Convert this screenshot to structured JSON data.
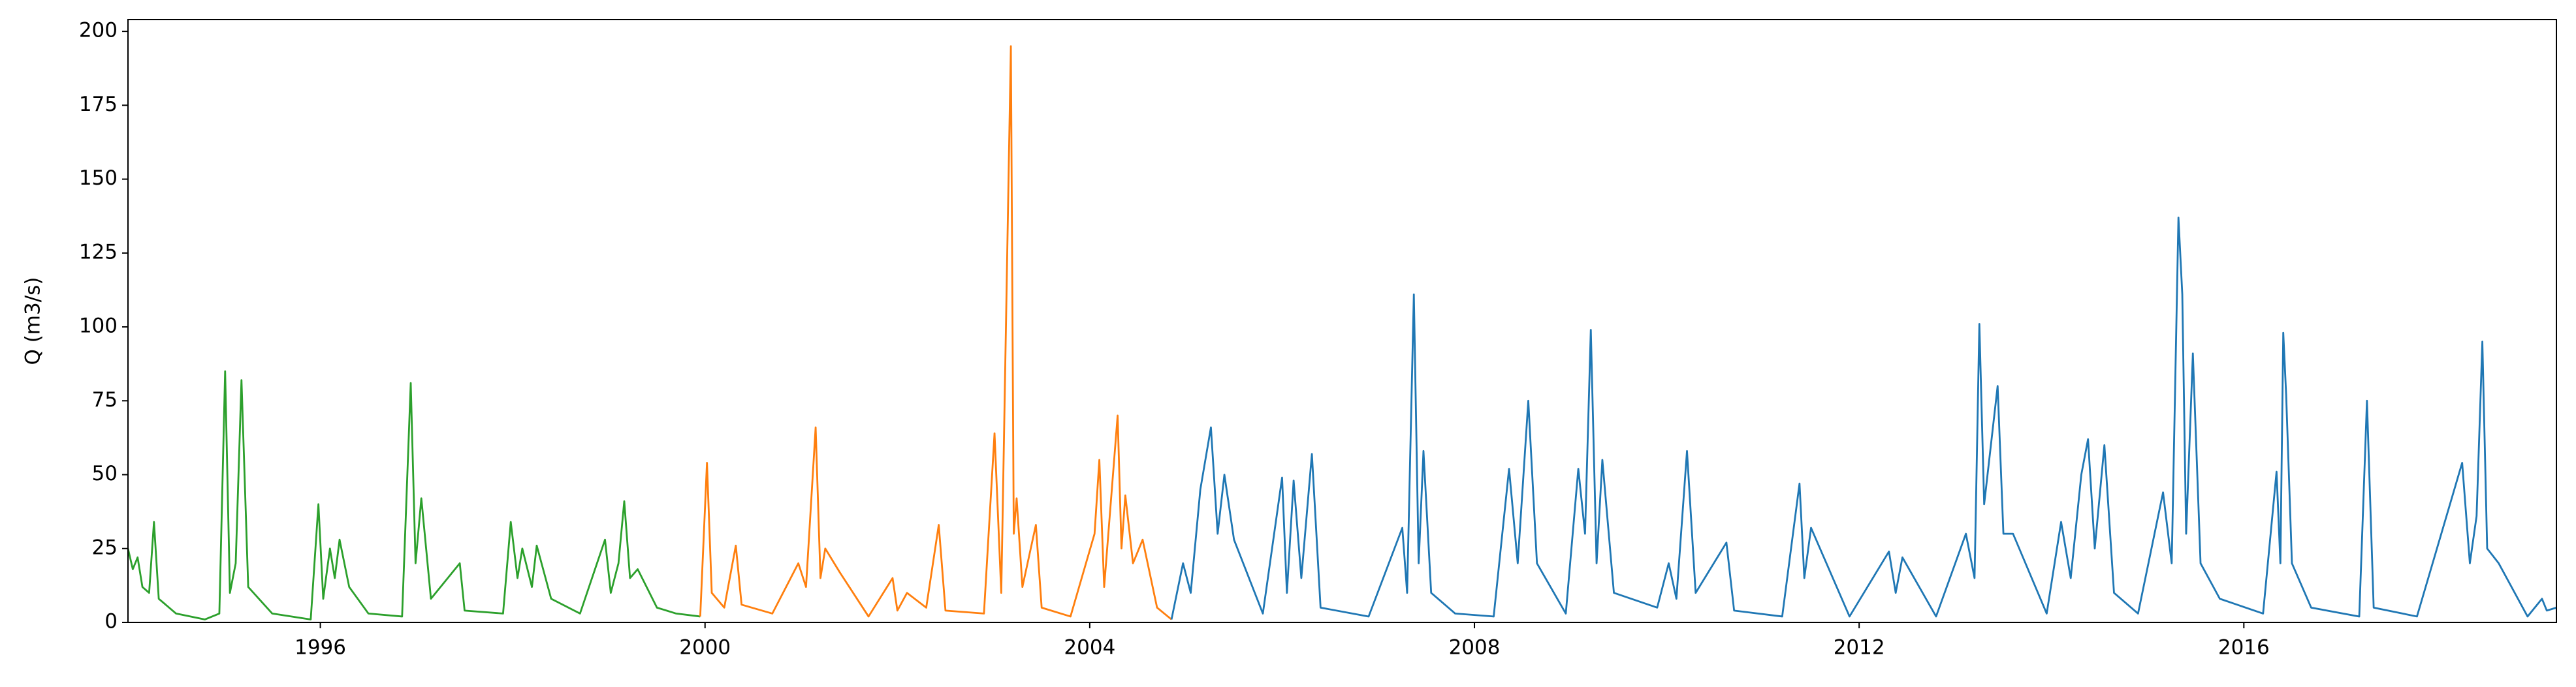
{
  "chart_data": {
    "type": "line",
    "y_label": "Q (m3/s)",
    "xlim": [
      1994.0,
      2019.25
    ],
    "xticks": [
      1996,
      2000,
      2004,
      2008,
      2012,
      2016
    ],
    "ylim": [
      0,
      204
    ],
    "yticks": [
      0,
      25,
      50,
      75,
      100,
      125,
      150,
      175,
      200
    ],
    "grid": false,
    "series": [
      {
        "color": "#2ca02c",
        "x": [
          1994.0,
          1994.05,
          1994.1,
          1994.15,
          1994.22,
          1994.27,
          1994.32,
          1994.5,
          1994.8,
          1994.95,
          1995.01,
          1995.06,
          1995.12,
          1995.18,
          1995.25,
          1995.5,
          1995.9,
          1995.98,
          1996.03,
          1996.1,
          1996.15,
          1996.2,
          1996.25,
          1996.3,
          1996.5,
          1996.85,
          1996.94,
          1996.99,
          1997.05,
          1997.15,
          1997.45,
          1997.5,
          1997.9,
          1997.98,
          1998.05,
          1998.1,
          1998.2,
          1998.25,
          1998.4,
          1998.7,
          1998.96,
          1999.02,
          1999.1,
          1999.16,
          1999.22,
          1999.3,
          1999.5,
          1999.7,
          1999.95
        ],
        "values": [
          25,
          18,
          22,
          12,
          10,
          34,
          8,
          3,
          1,
          3,
          85,
          10,
          20,
          82,
          12,
          3,
          1,
          40,
          8,
          25,
          15,
          28,
          20,
          12,
          3,
          2,
          81,
          20,
          42,
          8,
          20,
          4,
          3,
          34,
          15,
          25,
          12,
          26,
          8,
          3,
          28,
          10,
          20,
          41,
          15,
          18,
          5,
          3,
          2
        ]
      },
      {
        "color": "#ff7f0e",
        "x": [
          1999.95,
          2000.02,
          2000.07,
          2000.2,
          2000.32,
          2000.38,
          2000.7,
          2000.97,
          2001.05,
          2001.15,
          2001.2,
          2001.25,
          2001.4,
          2001.7,
          2001.95,
          2002.0,
          2002.1,
          2002.3,
          2002.43,
          2002.5,
          2002.9,
          2003.01,
          2003.08,
          2003.18,
          2003.21,
          2003.24,
          2003.3,
          2003.44,
          2003.5,
          2003.8,
          2004.05,
          2004.1,
          2004.15,
          2004.29,
          2004.33,
          2004.37,
          2004.45,
          2004.55,
          2004.7,
          2004.85
        ],
        "values": [
          2,
          54,
          10,
          5,
          26,
          6,
          3,
          20,
          12,
          66,
          15,
          25,
          17,
          2,
          15,
          4,
          10,
          5,
          33,
          4,
          3,
          64,
          10,
          195,
          30,
          42,
          12,
          33,
          5,
          2,
          30,
          55,
          12,
          70,
          25,
          43,
          20,
          28,
          5,
          1
        ]
      },
      {
        "color": "#1f77b4",
        "x": [
          2004.85,
          2004.97,
          2005.05,
          2005.15,
          2005.26,
          2005.33,
          2005.4,
          2005.5,
          2005.8,
          2006.0,
          2006.05,
          2006.12,
          2006.2,
          2006.31,
          2006.4,
          2006.9,
          2007.25,
          2007.3,
          2007.37,
          2007.42,
          2007.47,
          2007.55,
          2007.8,
          2008.2,
          2008.36,
          2008.45,
          2008.56,
          2008.65,
          2008.95,
          2009.08,
          2009.15,
          2009.21,
          2009.27,
          2009.33,
          2009.45,
          2009.9,
          2010.02,
          2010.1,
          2010.21,
          2010.3,
          2010.62,
          2010.7,
          2011.2,
          2011.38,
          2011.43,
          2011.5,
          2011.9,
          2012.31,
          2012.38,
          2012.45,
          2012.8,
          2013.11,
          2013.2,
          2013.25,
          2013.3,
          2013.44,
          2013.5,
          2013.6,
          2013.95,
          2014.1,
          2014.2,
          2014.31,
          2014.38,
          2014.45,
          2014.55,
          2014.65,
          2014.9,
          2015.16,
          2015.25,
          2015.32,
          2015.36,
          2015.4,
          2015.47,
          2015.55,
          2015.75,
          2016.2,
          2016.34,
          2016.38,
          2016.41,
          2016.44,
          2016.5,
          2016.7,
          2017.2,
          2017.28,
          2017.35,
          2017.8,
          2018.27,
          2018.35,
          2018.42,
          2018.48,
          2018.53,
          2018.65,
          2018.95,
          2019.1,
          2019.15,
          2019.25
        ],
        "values": [
          1,
          20,
          10,
          45,
          66,
          30,
          50,
          28,
          3,
          49,
          10,
          48,
          15,
          57,
          5,
          2,
          32,
          10,
          111,
          20,
          58,
          10,
          3,
          2,
          52,
          20,
          75,
          20,
          3,
          52,
          30,
          99,
          20,
          55,
          10,
          5,
          20,
          8,
          58,
          10,
          27,
          4,
          2,
          47,
          15,
          32,
          2,
          24,
          10,
          22,
          2,
          30,
          15,
          101,
          40,
          80,
          30,
          30,
          3,
          34,
          15,
          50,
          62,
          25,
          60,
          10,
          3,
          44,
          20,
          137,
          111,
          30,
          91,
          20,
          8,
          3,
          51,
          20,
          98,
          77,
          20,
          5,
          2,
          75,
          5,
          2,
          54,
          20,
          36,
          95,
          25,
          20,
          2,
          8,
          4,
          5
        ]
      }
    ]
  }
}
